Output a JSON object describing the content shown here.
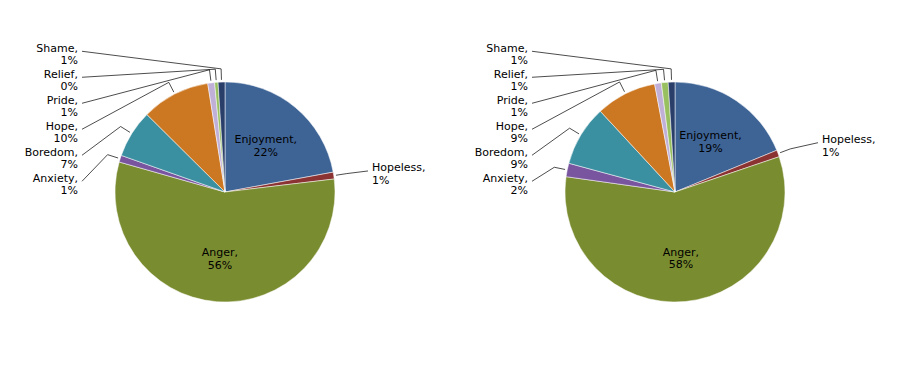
{
  "chart_data": [
    {
      "type": "pie",
      "categories": [
        "Enjoyment,",
        "Hopeless,",
        "Anger,",
        "Anxiety,",
        "Boredom,",
        "Hope,",
        "Pride,",
        "Relief,",
        "Shame,"
      ],
      "values": [
        22,
        1,
        56,
        1,
        7,
        10,
        1,
        0.5,
        1
      ],
      "value_labels": [
        "22%",
        "1%",
        "56%",
        "1%",
        "7%",
        "10%",
        "1%",
        "0%",
        "1%"
      ],
      "colors": [
        "#3e6496",
        "#8b3232",
        "#7a8c30",
        "#7955a0",
        "#3a8fa0",
        "#cc7722",
        "#c0b0d8",
        "#98c060",
        "#2a3e6a"
      ],
      "data_labels": true
    },
    {
      "type": "pie",
      "categories": [
        "Enjoyment,",
        "Hopeless,",
        "Anger,",
        "Anxiety,",
        "Boredom,",
        "Hope,",
        "Pride,",
        "Relief,",
        "Shame,"
      ],
      "values": [
        19,
        1,
        58,
        2,
        9,
        9,
        1,
        1,
        1
      ],
      "value_labels": [
        "19%",
        "1%",
        "58%",
        "2%",
        "9%",
        "9%",
        "1%",
        "1%",
        "1%"
      ],
      "colors": [
        "#3e6496",
        "#8b3232",
        "#7a8c30",
        "#7955a0",
        "#3a8fa0",
        "#cc7722",
        "#c0b0d8",
        "#98c060",
        "#2a3e6a"
      ],
      "data_labels": true
    }
  ]
}
